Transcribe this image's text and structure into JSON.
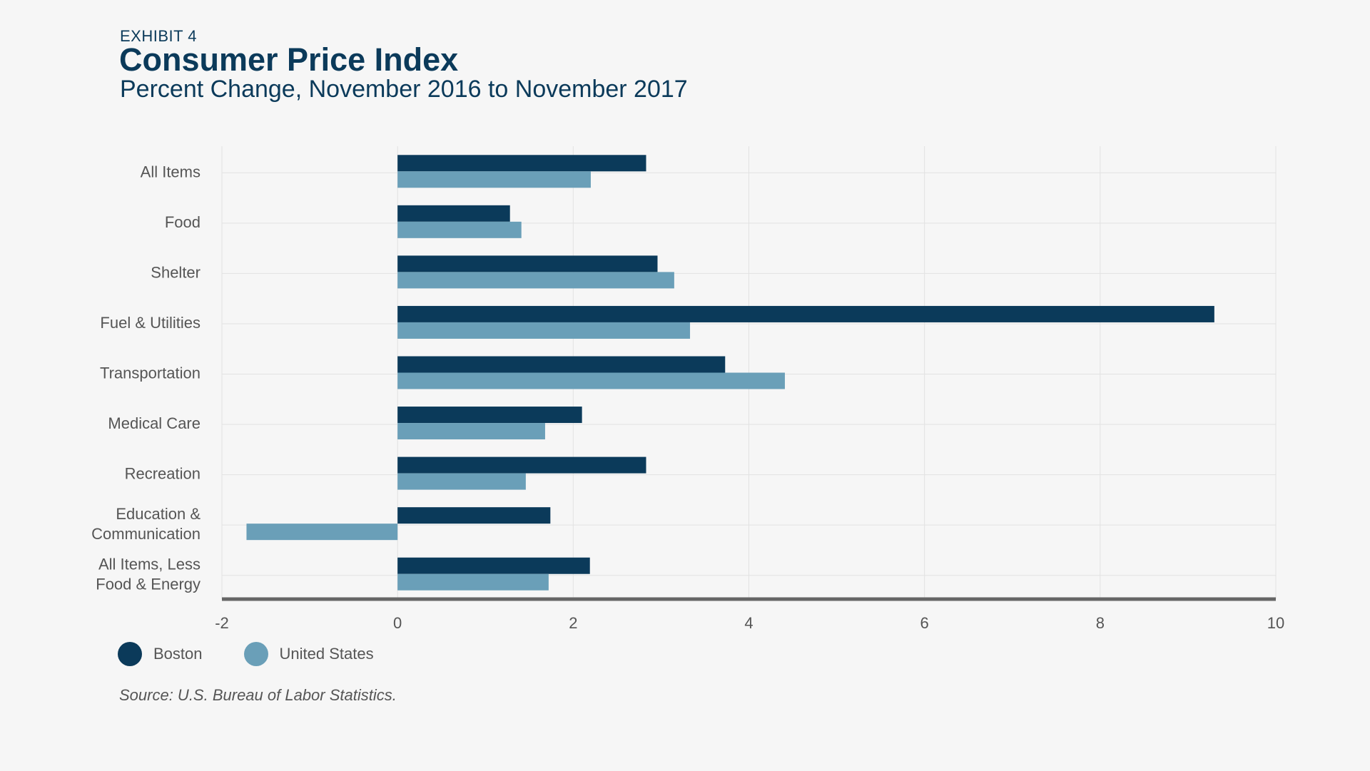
{
  "header": {
    "exhibit": "EXHIBIT 4",
    "title": "Consumer Price Index",
    "subtitle": "Percent Change, November 2016 to November 2017"
  },
  "source": "Source: U.S. Bureau of Labor Statistics.",
  "colors": {
    "boston": "#0b3a5a",
    "united_states": "#6a9fb8",
    "grid": "#e2e2e2",
    "axis": "#666666",
    "background": "#f6f6f6"
  },
  "chart_data": {
    "type": "bar",
    "orientation": "horizontal",
    "title": "Consumer Price Index",
    "subtitle": "Percent Change, November 2016 to November 2017",
    "categories": [
      [
        "All Items"
      ],
      [
        "Food"
      ],
      [
        "Shelter"
      ],
      [
        "Fuel & Utilities"
      ],
      [
        "Transportation"
      ],
      [
        "Medical Care"
      ],
      [
        "Recreation"
      ],
      [
        "Education &",
        "Communication"
      ],
      [
        "All Items, Less",
        "Food & Energy"
      ]
    ],
    "series": [
      {
        "name": "Boston",
        "color": "#0b3a5a",
        "values": [
          2.83,
          1.28,
          2.96,
          9.3,
          3.73,
          2.1,
          2.83,
          1.74,
          2.19
        ]
      },
      {
        "name": "United States",
        "color": "#6a9fb8",
        "values": [
          2.2,
          1.41,
          3.15,
          3.33,
          4.41,
          1.68,
          1.46,
          -1.72,
          1.72
        ]
      }
    ],
    "xlim": [
      -2,
      10
    ],
    "xticks": [
      -2,
      0,
      2,
      4,
      6,
      8,
      10
    ],
    "grid": true,
    "legend": "bottom-left"
  }
}
